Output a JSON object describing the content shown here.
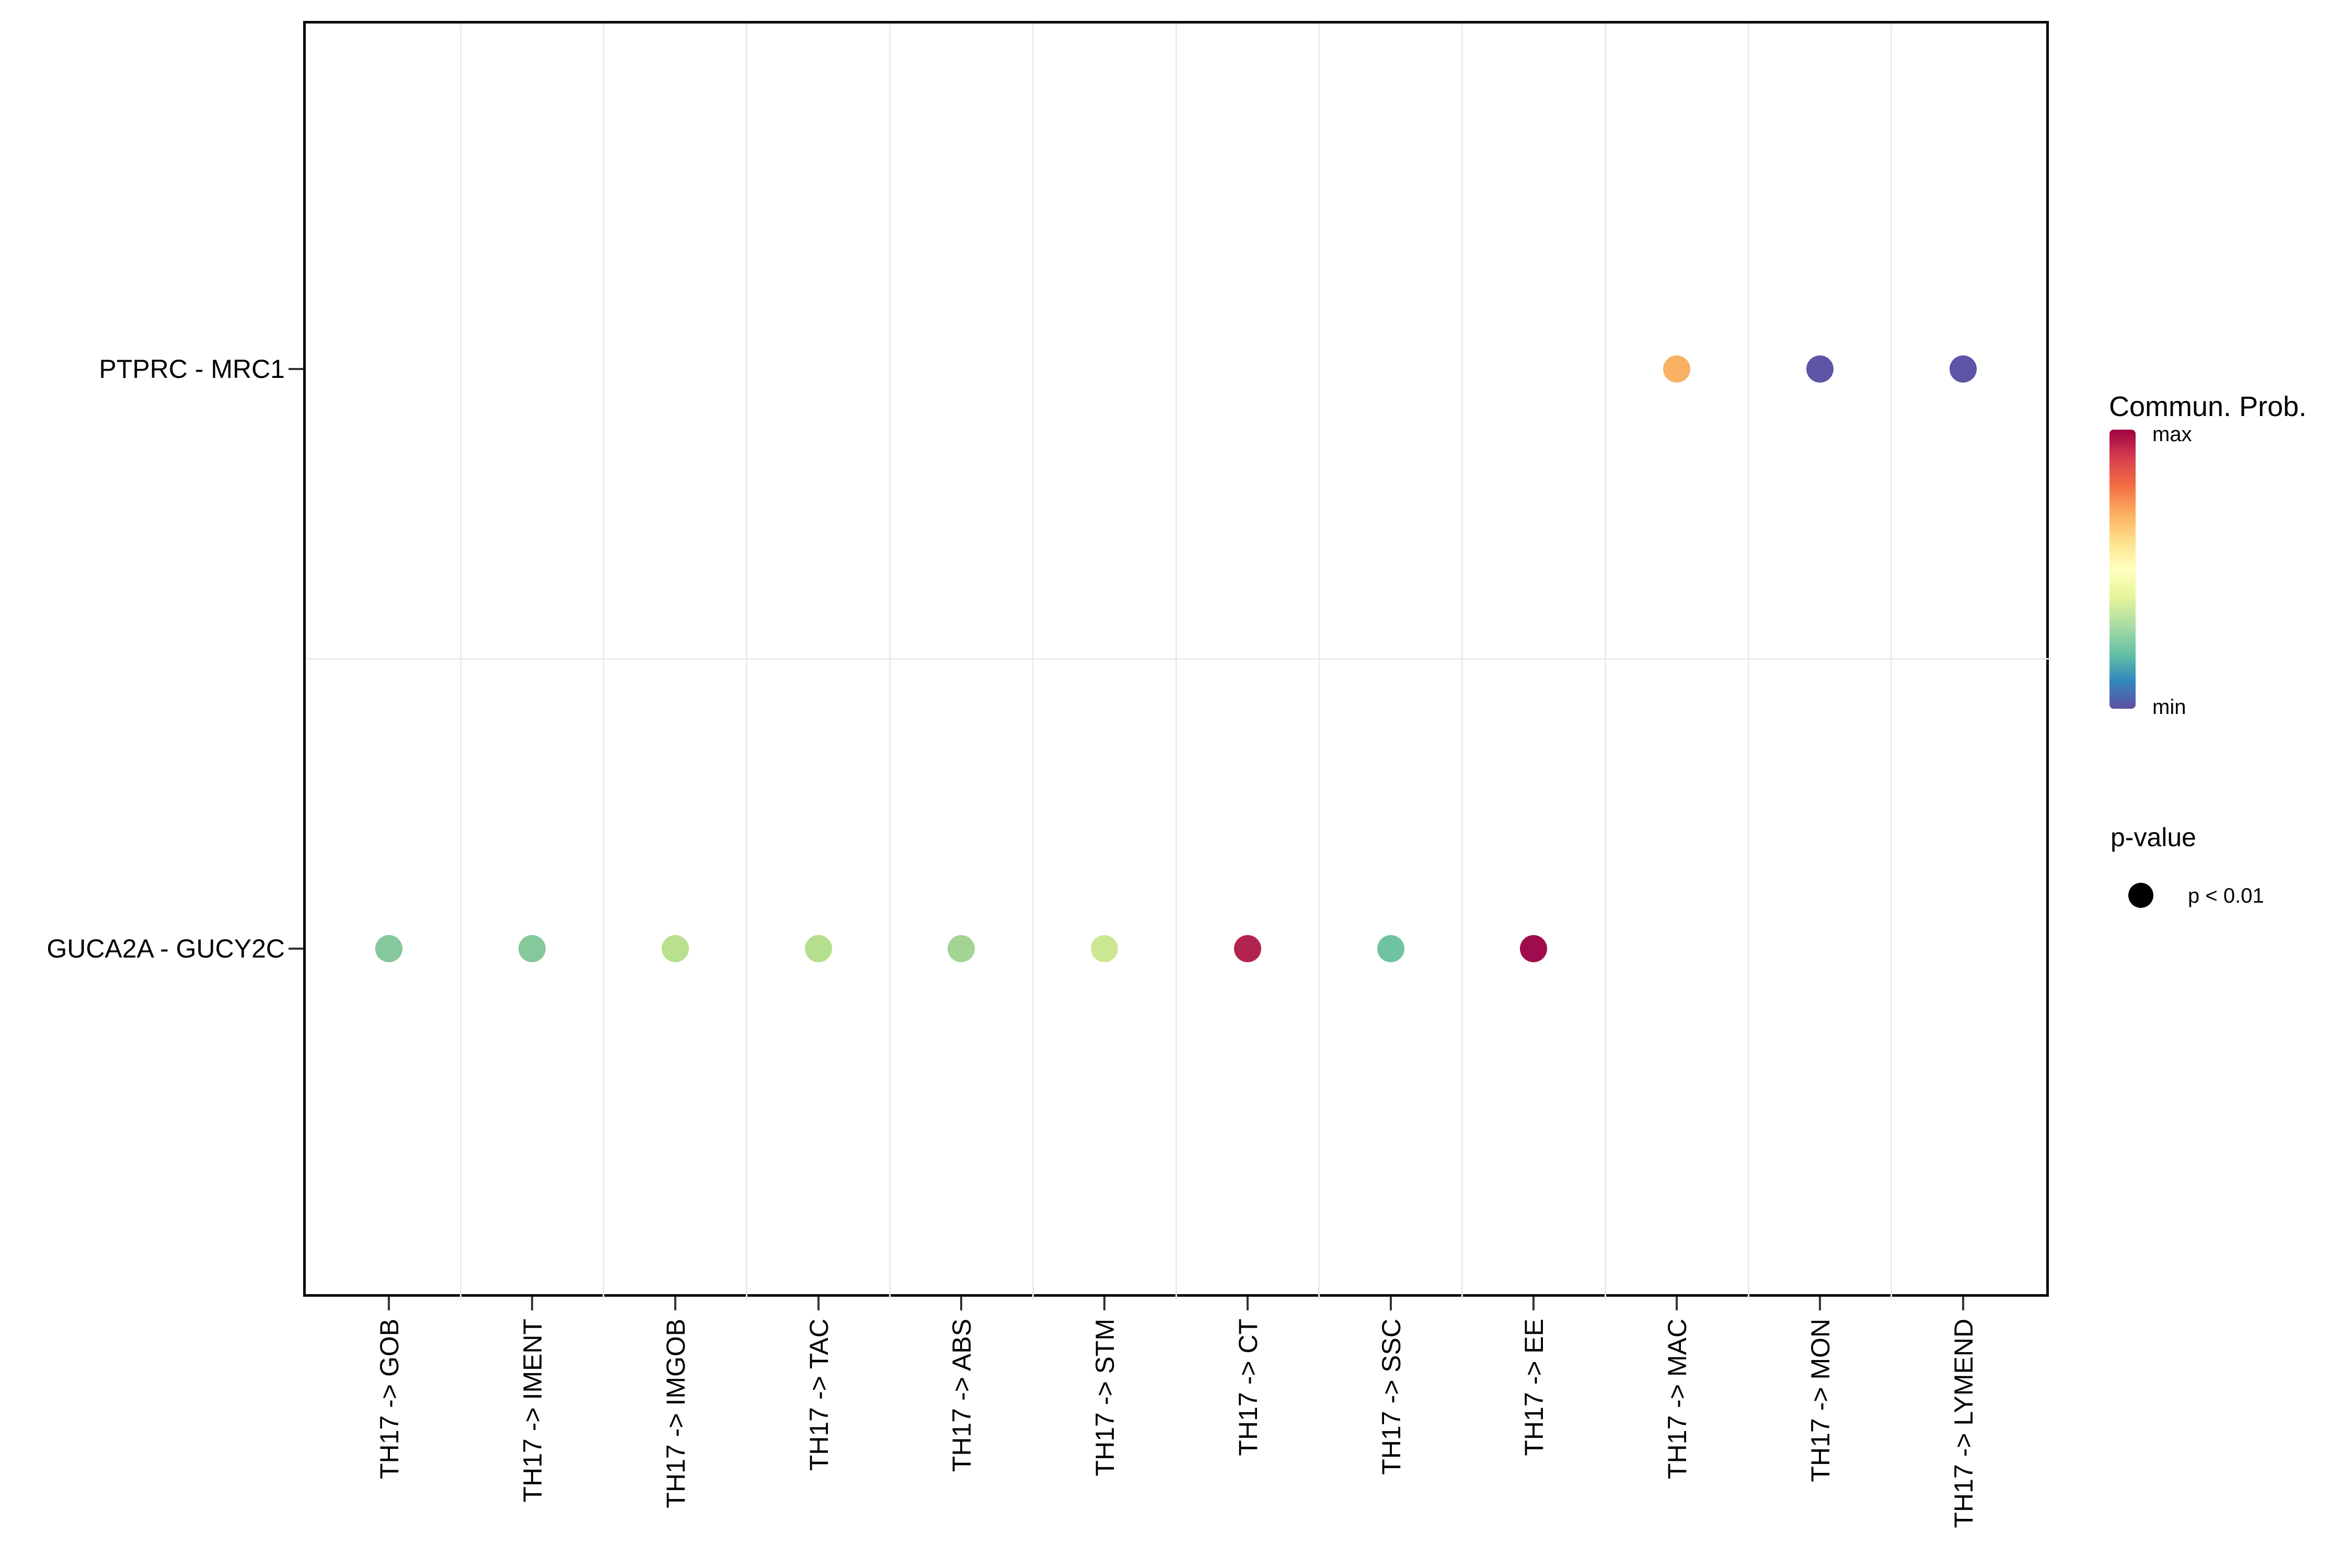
{
  "chart_data": {
    "type": "scatter",
    "subtype": "dot-plot-cell-communication",
    "title": "",
    "xlabel": "",
    "ylabel": "",
    "grid": "minor-only",
    "x_categories": [
      "TH17 -> GOB",
      "TH17 -> IMENT",
      "TH17 -> IMGOB",
      "TH17 -> TAC",
      "TH17 -> ABS",
      "TH17 -> STM",
      "TH17 -> CT",
      "TH17 -> SSC",
      "TH17 -> EE",
      "TH17 -> MAC",
      "TH17 -> MON",
      "TH17 -> LYMEND"
    ],
    "y_categories": [
      "PTPRC - MRC1",
      "GUCA2A - GUCY2C"
    ],
    "points": [
      {
        "x": "TH17 -> GOB",
        "y": "GUCA2A - GUCY2C",
        "color": "#84c89c",
        "commun_prob_norm_est": 0.27,
        "p_value": "p < 0.01"
      },
      {
        "x": "TH17 -> IMENT",
        "y": "GUCA2A - GUCY2C",
        "color": "#84c89c",
        "commun_prob_norm_est": 0.27,
        "p_value": "p < 0.01"
      },
      {
        "x": "TH17 -> IMGOB",
        "y": "GUCA2A - GUCY2C",
        "color": "#b8e08e",
        "commun_prob_norm_est": 0.36,
        "p_value": "p < 0.01"
      },
      {
        "x": "TH17 -> TAC",
        "y": "GUCA2A - GUCY2C",
        "color": "#b6df8d",
        "commun_prob_norm_est": 0.36,
        "p_value": "p < 0.01"
      },
      {
        "x": "TH17 -> ABS",
        "y": "GUCA2A - GUCY2C",
        "color": "#a3d494",
        "commun_prob_norm_est": 0.32,
        "p_value": "p < 0.01"
      },
      {
        "x": "TH17 -> STM",
        "y": "GUCA2A - GUCY2C",
        "color": "#cce792",
        "commun_prob_norm_est": 0.4,
        "p_value": "p < 0.01"
      },
      {
        "x": "TH17 -> CT",
        "y": "GUCA2A - GUCY2C",
        "color": "#b32350",
        "commun_prob_norm_est": 0.92,
        "p_value": "p < 0.01"
      },
      {
        "x": "TH17 -> SSC",
        "y": "GUCA2A - GUCY2C",
        "color": "#6fc3a0",
        "commun_prob_norm_est": 0.23,
        "p_value": "p < 0.01"
      },
      {
        "x": "TH17 -> EE",
        "y": "GUCA2A - GUCY2C",
        "color": "#9f0c4d",
        "commun_prob_norm_est": 0.98,
        "p_value": "p < 0.01"
      },
      {
        "x": "TH17 -> MAC",
        "y": "PTPRC - MRC1",
        "color": "#f9b164",
        "commun_prob_norm_est": 0.7,
        "p_value": "p < 0.01"
      },
      {
        "x": "TH17 -> MON",
        "y": "PTPRC - MRC1",
        "color": "#5d55a6",
        "commun_prob_norm_est": 0.02,
        "p_value": "p < 0.01"
      },
      {
        "x": "TH17 -> LYMEND",
        "y": "PTPRC - MRC1",
        "color": "#5d55a6",
        "commun_prob_norm_est": 0.02,
        "p_value": "p < 0.01"
      }
    ],
    "legend": {
      "colorbar_title": "Commun. Prob.",
      "colorbar_max_label": "max",
      "colorbar_min_label": "min",
      "colormap_top_to_bottom": [
        "#9e0142",
        "#d53e4f",
        "#f46d43",
        "#fdae61",
        "#fee08b",
        "#ffffbf",
        "#e6f598",
        "#abdda4",
        "#66c2a5",
        "#3288bd",
        "#5e4fa2"
      ],
      "pvalue_title": "p-value",
      "pvalue_items": [
        {
          "label": "p < 0.01",
          "color": "#000000"
        }
      ]
    }
  },
  "style": {
    "background": "#ffffff",
    "panel_border": "#0a0a0a",
    "gridline": "#ebebeb",
    "tick": "#333333",
    "text": "#000000"
  }
}
